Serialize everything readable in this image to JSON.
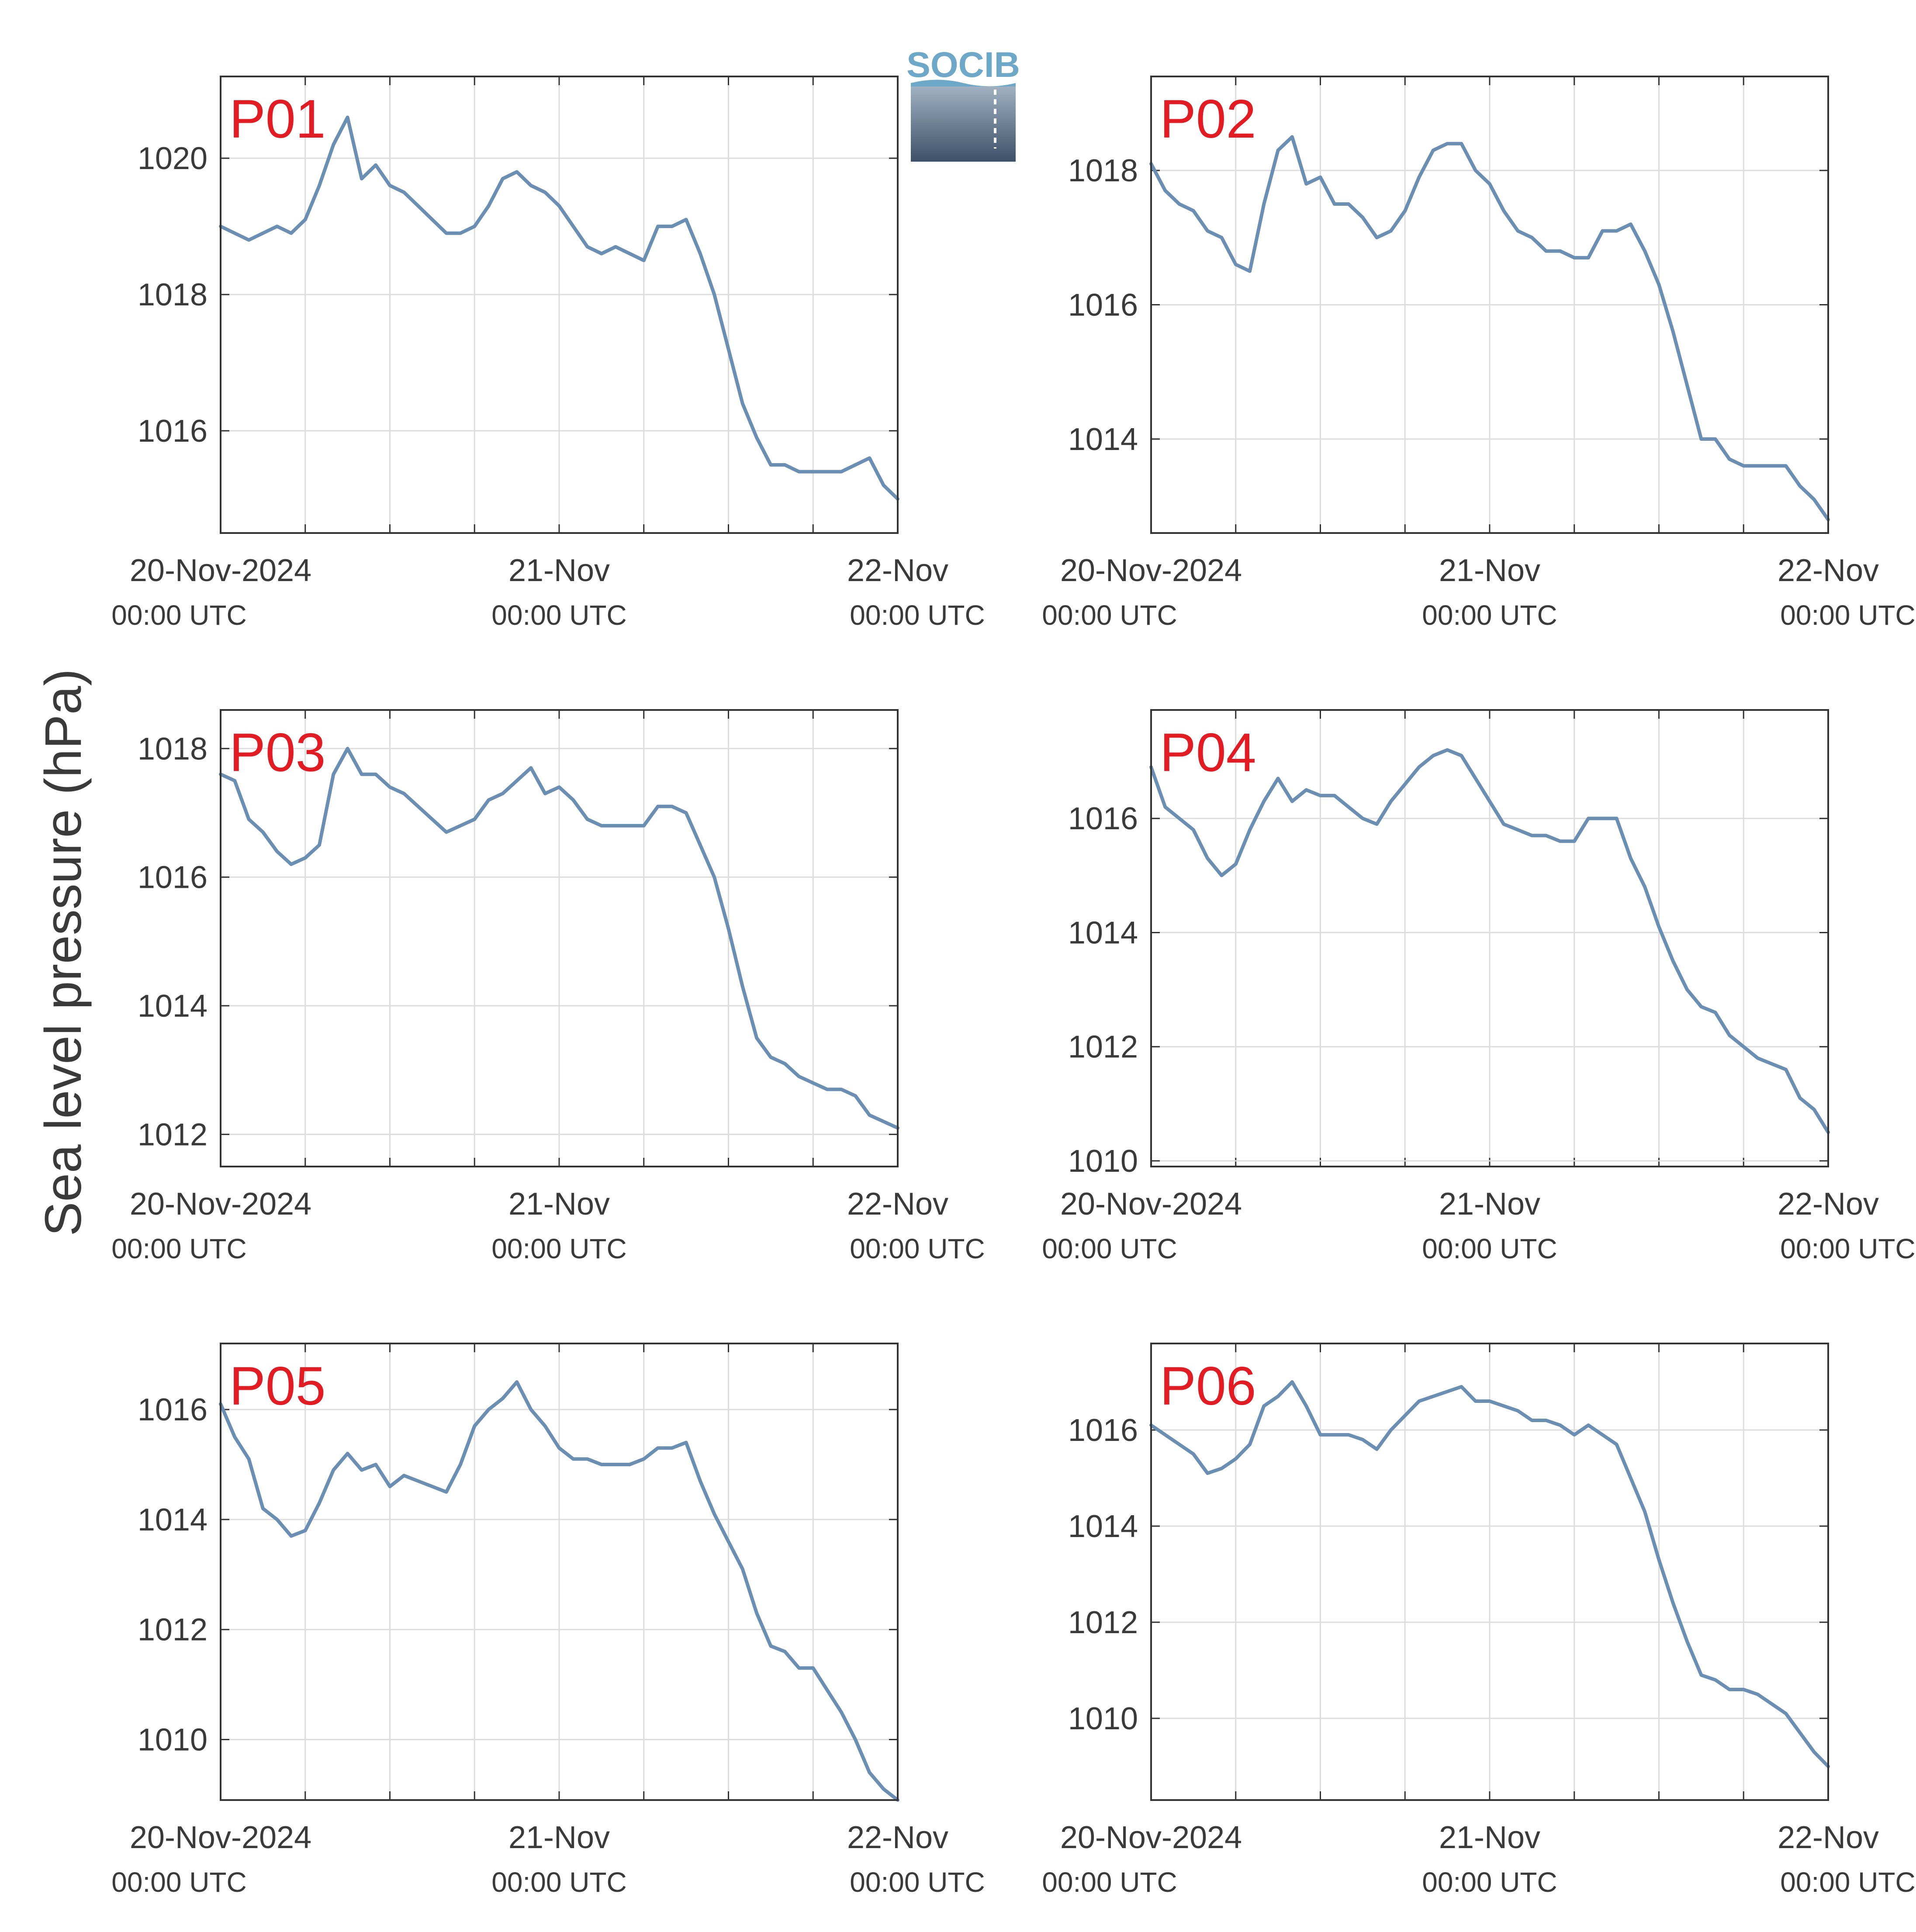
{
  "figure": {
    "ylabel": "Sea level pressure (hPa)",
    "logo_text": "SOCIB",
    "line_color": "#6a8fb3",
    "title_color": "#e31b23",
    "grid_color": "#dddddd",
    "frame_color": "#333333"
  },
  "chart_data": [
    {
      "type": "line",
      "title": "P01",
      "xlabel": "",
      "ylabel": "Sea level pressure (hPa)",
      "xlim": [
        0,
        48
      ],
      "ylim": [
        1014.5,
        1021.2
      ],
      "yticks": [
        1016,
        1018,
        1020
      ],
      "xticks": [
        {
          "value": 0,
          "line1": "20-Nov-2024",
          "line2": "00:00 UTC"
        },
        {
          "value": 24,
          "line1": "21-Nov",
          "line2": "00:00 UTC"
        },
        {
          "value": 48,
          "line1": "22-Nov",
          "line2": "00:00 UTC"
        }
      ],
      "series": [
        {
          "x": [
            0,
            1,
            2,
            3,
            4,
            5,
            6,
            7,
            8,
            9,
            10,
            11,
            12,
            13,
            14,
            15,
            16,
            17,
            18,
            19,
            20,
            21,
            22,
            23,
            24,
            25,
            26,
            27,
            28,
            29,
            30,
            31,
            32,
            33,
            34,
            35,
            36,
            37,
            38,
            39,
            40,
            41,
            42,
            43,
            44,
            45,
            46,
            47,
            48
          ],
          "y": [
            1019.0,
            1018.9,
            1018.8,
            1018.9,
            1019.0,
            1018.9,
            1019.1,
            1019.6,
            1020.2,
            1020.6,
            1019.7,
            1019.9,
            1019.6,
            1019.5,
            1019.3,
            1019.1,
            1018.9,
            1018.9,
            1019.0,
            1019.3,
            1019.7,
            1019.8,
            1019.6,
            1019.5,
            1019.3,
            1019.0,
            1018.7,
            1018.6,
            1018.7,
            1018.6,
            1018.5,
            1019.0,
            1019.0,
            1019.1,
            1018.6,
            1018.0,
            1017.2,
            1016.4,
            1015.9,
            1015.5,
            1015.5,
            1015.4,
            1015.4,
            1015.4,
            1015.4,
            1015.5,
            1015.6,
            1015.2,
            1015.0
          ]
        }
      ]
    },
    {
      "type": "line",
      "title": "P02",
      "xlabel": "",
      "ylabel": "Sea level pressure (hPa)",
      "xlim": [
        0,
        48
      ],
      "ylim": [
        1012.6,
        1019.4
      ],
      "yticks": [
        1014,
        1016,
        1018
      ],
      "xticks": [
        {
          "value": 0,
          "line1": "20-Nov-2024",
          "line2": "00:00 UTC"
        },
        {
          "value": 24,
          "line1": "21-Nov",
          "line2": "00:00 UTC"
        },
        {
          "value": 48,
          "line1": "22-Nov",
          "line2": "00:00 UTC"
        }
      ],
      "series": [
        {
          "x": [
            0,
            1,
            2,
            3,
            4,
            5,
            6,
            7,
            8,
            9,
            10,
            11,
            12,
            13,
            14,
            15,
            16,
            17,
            18,
            19,
            20,
            21,
            22,
            23,
            24,
            25,
            26,
            27,
            28,
            29,
            30,
            31,
            32,
            33,
            34,
            35,
            36,
            37,
            38,
            39,
            40,
            41,
            42,
            43,
            44,
            45,
            46,
            47,
            48
          ],
          "y": [
            1018.1,
            1017.7,
            1017.5,
            1017.4,
            1017.1,
            1017.0,
            1016.6,
            1016.5,
            1017.5,
            1018.3,
            1018.5,
            1017.8,
            1017.9,
            1017.5,
            1017.5,
            1017.3,
            1017.0,
            1017.1,
            1017.4,
            1017.9,
            1018.3,
            1018.4,
            1018.4,
            1018.0,
            1017.8,
            1017.4,
            1017.1,
            1017.0,
            1016.8,
            1016.8,
            1016.7,
            1016.7,
            1017.1,
            1017.1,
            1017.2,
            1016.8,
            1016.3,
            1015.6,
            1014.8,
            1014.0,
            1014.0,
            1013.7,
            1013.6,
            1013.6,
            1013.6,
            1013.6,
            1013.3,
            1013.1,
            1012.8
          ]
        }
      ]
    },
    {
      "type": "line",
      "title": "P03",
      "xlabel": "",
      "ylabel": "Sea level pressure (hPa)",
      "xlim": [
        0,
        48
      ],
      "ylim": [
        1011.5,
        1018.6
      ],
      "yticks": [
        1012,
        1014,
        1016,
        1018
      ],
      "xticks": [
        {
          "value": 0,
          "line1": "20-Nov-2024",
          "line2": "00:00 UTC"
        },
        {
          "value": 24,
          "line1": "21-Nov",
          "line2": "00:00 UTC"
        },
        {
          "value": 48,
          "line1": "22-Nov",
          "line2": "00:00 UTC"
        }
      ],
      "series": [
        {
          "x": [
            0,
            1,
            2,
            3,
            4,
            5,
            6,
            7,
            8,
            9,
            10,
            11,
            12,
            13,
            14,
            15,
            16,
            17,
            18,
            19,
            20,
            21,
            22,
            23,
            24,
            25,
            26,
            27,
            28,
            29,
            30,
            31,
            32,
            33,
            34,
            35,
            36,
            37,
            38,
            39,
            40,
            41,
            42,
            43,
            44,
            45,
            46,
            47,
            48
          ],
          "y": [
            1017.6,
            1017.5,
            1016.9,
            1016.7,
            1016.4,
            1016.2,
            1016.3,
            1016.5,
            1017.6,
            1018.0,
            1017.6,
            1017.6,
            1017.4,
            1017.3,
            1017.1,
            1016.9,
            1016.7,
            1016.8,
            1016.9,
            1017.2,
            1017.3,
            1017.5,
            1017.7,
            1017.3,
            1017.4,
            1017.2,
            1016.9,
            1016.8,
            1016.8,
            1016.8,
            1016.8,
            1017.1,
            1017.1,
            1017.0,
            1016.5,
            1016.0,
            1015.2,
            1014.3,
            1013.5,
            1013.2,
            1013.1,
            1012.9,
            1012.8,
            1012.7,
            1012.7,
            1012.6,
            1012.3,
            1012.2,
            1012.1
          ]
        }
      ]
    },
    {
      "type": "line",
      "title": "P04",
      "xlabel": "",
      "ylabel": "Sea level pressure (hPa)",
      "xlim": [
        0,
        48
      ],
      "ylim": [
        1009.9,
        1017.9
      ],
      "yticks": [
        1010,
        1012,
        1014,
        1016
      ],
      "xticks": [
        {
          "value": 0,
          "line1": "20-Nov-2024",
          "line2": "00:00 UTC"
        },
        {
          "value": 24,
          "line1": "21-Nov",
          "line2": "00:00 UTC"
        },
        {
          "value": 48,
          "line1": "22-Nov",
          "line2": "00:00 UTC"
        }
      ],
      "series": [
        {
          "x": [
            0,
            1,
            2,
            3,
            4,
            5,
            6,
            7,
            8,
            9,
            10,
            11,
            12,
            13,
            14,
            15,
            16,
            17,
            18,
            19,
            20,
            21,
            22,
            23,
            24,
            25,
            26,
            27,
            28,
            29,
            30,
            31,
            32,
            33,
            34,
            35,
            36,
            37,
            38,
            39,
            40,
            41,
            42,
            43,
            44,
            45,
            46,
            47,
            48
          ],
          "y": [
            1016.9,
            1016.2,
            1016.0,
            1015.8,
            1015.3,
            1015.0,
            1015.2,
            1015.8,
            1016.3,
            1016.7,
            1016.3,
            1016.5,
            1016.4,
            1016.4,
            1016.2,
            1016.0,
            1015.9,
            1016.3,
            1016.6,
            1016.9,
            1017.1,
            1017.2,
            1017.1,
            1016.7,
            1016.3,
            1015.9,
            1015.8,
            1015.7,
            1015.7,
            1015.6,
            1015.6,
            1016.0,
            1016.0,
            1016.0,
            1015.3,
            1014.8,
            1014.1,
            1013.5,
            1013.0,
            1012.7,
            1012.6,
            1012.2,
            1012.0,
            1011.8,
            1011.7,
            1011.6,
            1011.1,
            1010.9,
            1010.5
          ]
        }
      ]
    },
    {
      "type": "line",
      "title": "P05",
      "xlabel": "",
      "ylabel": "Sea level pressure (hPa)",
      "xlim": [
        0,
        48
      ],
      "ylim": [
        1008.9,
        1017.2
      ],
      "yticks": [
        1010,
        1012,
        1014,
        1016
      ],
      "xticks": [
        {
          "value": 0,
          "line1": "20-Nov-2024",
          "line2": "00:00 UTC"
        },
        {
          "value": 24,
          "line1": "21-Nov",
          "line2": "00:00 UTC"
        },
        {
          "value": 48,
          "line1": "22-Nov",
          "line2": "00:00 UTC"
        }
      ],
      "series": [
        {
          "x": [
            0,
            1,
            2,
            3,
            4,
            5,
            6,
            7,
            8,
            9,
            10,
            11,
            12,
            13,
            14,
            15,
            16,
            17,
            18,
            19,
            20,
            21,
            22,
            23,
            24,
            25,
            26,
            27,
            28,
            29,
            30,
            31,
            32,
            33,
            34,
            35,
            36,
            37,
            38,
            39,
            40,
            41,
            42,
            43,
            44,
            45,
            46,
            47,
            48
          ],
          "y": [
            1016.1,
            1015.5,
            1015.1,
            1014.2,
            1014.0,
            1013.7,
            1013.8,
            1014.3,
            1014.9,
            1015.2,
            1014.9,
            1015.0,
            1014.6,
            1014.8,
            1014.7,
            1014.6,
            1014.5,
            1015.0,
            1015.7,
            1016.0,
            1016.2,
            1016.5,
            1016.0,
            1015.7,
            1015.3,
            1015.1,
            1015.1,
            1015.0,
            1015.0,
            1015.0,
            1015.1,
            1015.3,
            1015.3,
            1015.4,
            1014.7,
            1014.1,
            1013.6,
            1013.1,
            1012.3,
            1011.7,
            1011.6,
            1011.3,
            1011.3,
            1010.9,
            1010.5,
            1010.0,
            1009.4,
            1009.1,
            1008.9
          ]
        }
      ]
    },
    {
      "type": "line",
      "title": "P06",
      "xlabel": "",
      "ylabel": "Sea level pressure (hPa)",
      "xlim": [
        0,
        48
      ],
      "ylim": [
        1008.3,
        1017.8
      ],
      "yticks": [
        1010,
        1012,
        1014,
        1016
      ],
      "xticks": [
        {
          "value": 0,
          "line1": "20-Nov-2024",
          "line2": "00:00 UTC"
        },
        {
          "value": 24,
          "line1": "21-Nov",
          "line2": "00:00 UTC"
        },
        {
          "value": 48,
          "line1": "22-Nov",
          "line2": "00:00 UTC"
        }
      ],
      "series": [
        {
          "x": [
            0,
            1,
            2,
            3,
            4,
            5,
            6,
            7,
            8,
            9,
            10,
            11,
            12,
            13,
            14,
            15,
            16,
            17,
            18,
            19,
            20,
            21,
            22,
            23,
            24,
            25,
            26,
            27,
            28,
            29,
            30,
            31,
            32,
            33,
            34,
            35,
            36,
            37,
            38,
            39,
            40,
            41,
            42,
            43,
            44,
            45,
            46,
            47,
            48
          ],
          "y": [
            1016.1,
            1015.9,
            1015.7,
            1015.5,
            1015.1,
            1015.2,
            1015.4,
            1015.7,
            1016.5,
            1016.7,
            1017.0,
            1016.5,
            1015.9,
            1015.9,
            1015.9,
            1015.8,
            1015.6,
            1016.0,
            1016.3,
            1016.6,
            1016.7,
            1016.8,
            1016.9,
            1016.6,
            1016.6,
            1016.5,
            1016.4,
            1016.2,
            1016.2,
            1016.1,
            1015.9,
            1016.1,
            1015.9,
            1015.7,
            1015.0,
            1014.3,
            1013.3,
            1012.4,
            1011.6,
            1010.9,
            1010.8,
            1010.6,
            1010.6,
            1010.5,
            1010.3,
            1010.1,
            1009.7,
            1009.3,
            1009.0
          ]
        }
      ]
    }
  ]
}
